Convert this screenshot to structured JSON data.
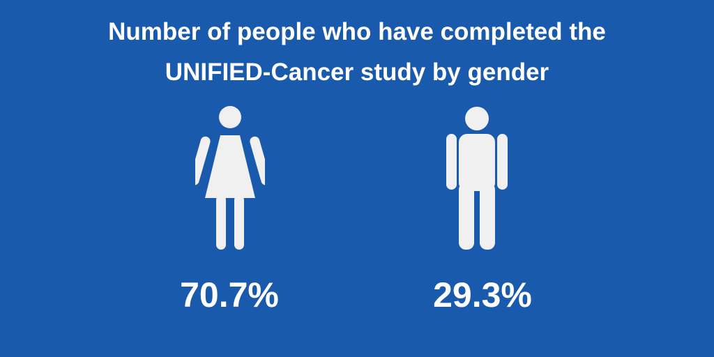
{
  "colors": {
    "background": "#1a5aad",
    "text": "#ffffff",
    "icon": "#f0f0f0"
  },
  "header": {
    "title_line_1": "Number of people who have completed the",
    "title_line_2": "UNIFIED-Cancer study by gender"
  },
  "chart_data": {
    "type": "pictogram",
    "title": "Number of people who have completed the UNIFIED-Cancer study by gender",
    "unit": "%",
    "categories": [
      "female",
      "male"
    ],
    "values": [
      70.7,
      29.3
    ],
    "value_labels": [
      "70.7%",
      "29.3%"
    ],
    "icons": [
      "female-figure-icon",
      "male-figure-icon"
    ]
  }
}
